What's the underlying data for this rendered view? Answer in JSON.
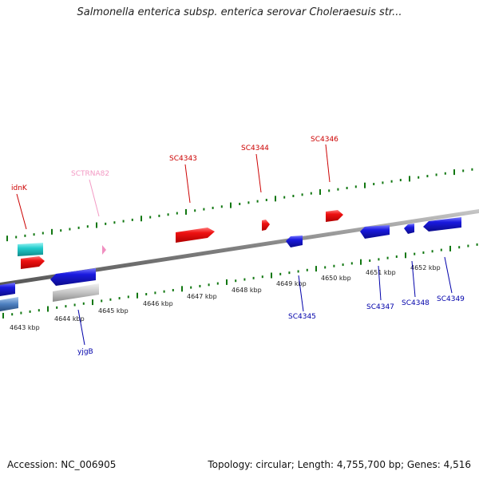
{
  "title": "Salmonella enterica subsp. enterica serovar Choleraesuis str...",
  "footer": {
    "accession": "Accession: NC_006905",
    "summary": "Topology: circular; Length: 4,755,700 bp; Genes: 4,516"
  },
  "colors": {
    "forward_gene": "#ee1111",
    "reverse_gene": "#1a1adf",
    "rna_gene": "#f08fc0",
    "forward_label": "#cc0000",
    "reverse_label": "#0000aa",
    "rna_label": "#f39ac4",
    "backbone": "#888888",
    "tick": "#117711",
    "other_feature": "#22cccc",
    "grey_feature": "#bbbbbb"
  },
  "position_labels": [
    "4643 kbp",
    "4644 kbp",
    "4645 kbp",
    "4646 kbp",
    "4647 kbp",
    "4648 kbp",
    "4649 kbp",
    "4650 kbp",
    "4651 kbp",
    "4652 kbp"
  ],
  "genes_forward": [
    {
      "name": "idnK"
    },
    {
      "name": "SCTRNA82",
      "kind": "rna"
    },
    {
      "name": "SC4343"
    },
    {
      "name": "SC4344"
    },
    {
      "name": "SC4346"
    }
  ],
  "genes_reverse": [
    {
      "name": "yjgB"
    },
    {
      "name": "SC4345"
    },
    {
      "name": "SC4347"
    },
    {
      "name": "SC4348"
    },
    {
      "name": "SC4349"
    }
  ]
}
